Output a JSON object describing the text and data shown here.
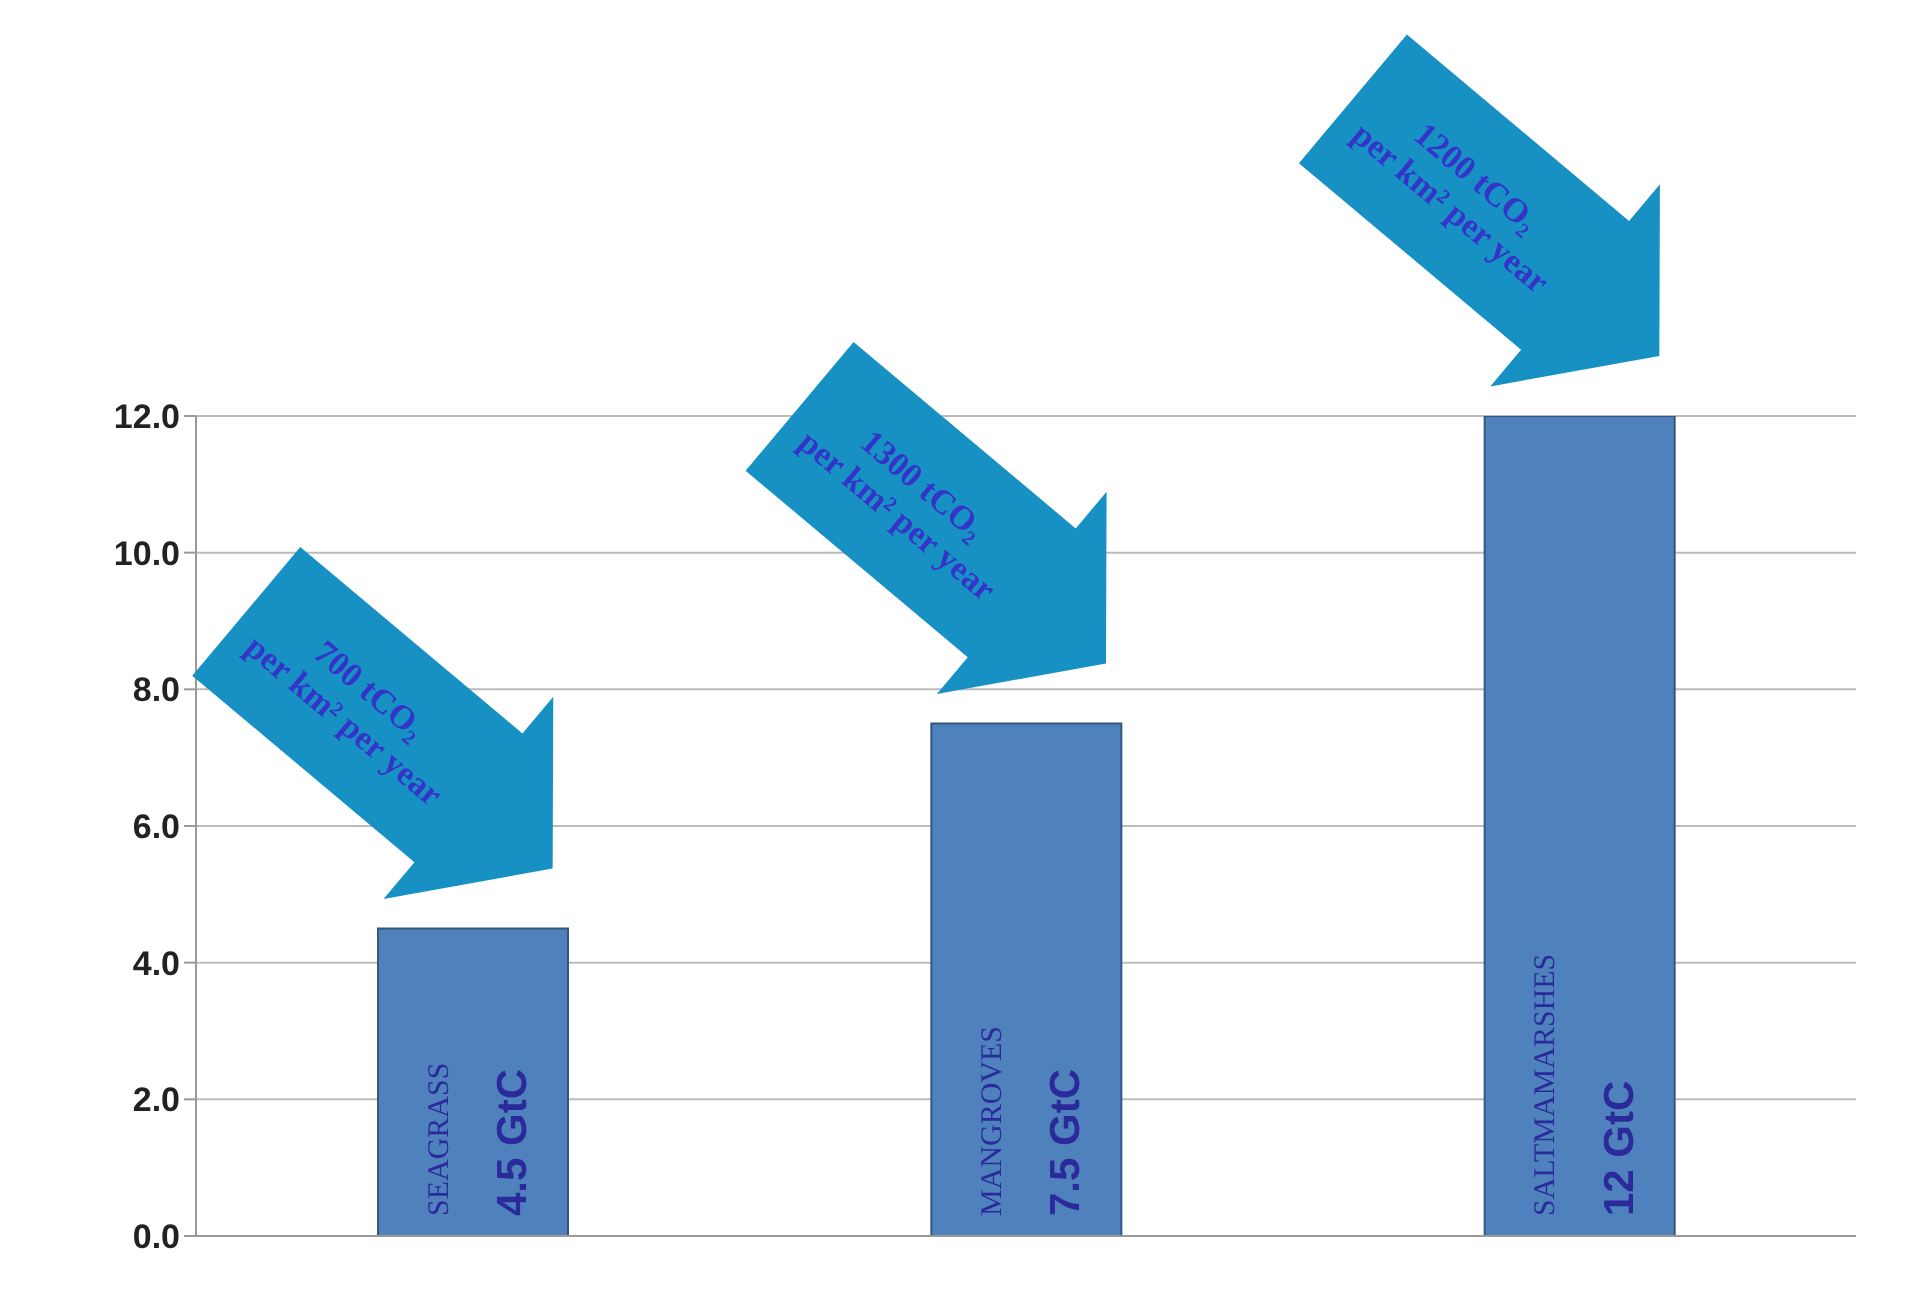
{
  "chart_data": {
    "type": "bar",
    "categories": [
      "SEAGRASS",
      "MANGROVES",
      "SALTMAMARSHES"
    ],
    "values": [
      4.5,
      7.5,
      12
    ],
    "color": "#4f81bd",
    "value_labels": [
      "4.5 GtC",
      "7.5 GtC",
      "12 GtC"
    ],
    "ylim": [
      0,
      12
    ],
    "yticks": [
      {
        "value": 0,
        "label": "0.0"
      },
      {
        "value": 2,
        "label": "2.0"
      },
      {
        "value": 4,
        "label": "4.0"
      },
      {
        "value": 6,
        "label": "6.0"
      },
      {
        "value": 8,
        "label": "8.0"
      },
      {
        "value": 10,
        "label": "10.0"
      },
      {
        "value": 12,
        "label": "12.0"
      }
    ],
    "grid": "y",
    "tick_labels": "y",
    "annotations": [
      "700 tCO₂ per km² per year",
      "1300 tCO₂ per km² per year",
      "1200 tCO₂ per km² per year"
    ]
  }
}
